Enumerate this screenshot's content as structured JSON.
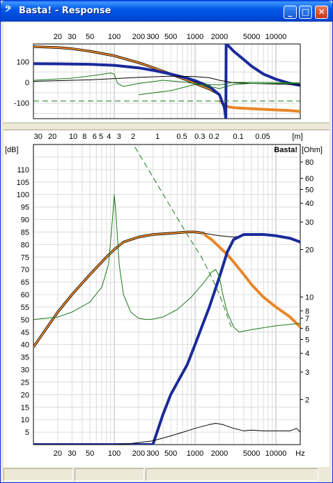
{
  "window": {
    "title": "Basta! - Response",
    "app_icon": "bass-clef-icon",
    "controls": {
      "minimize": "_",
      "maximize": "□",
      "close": "✕"
    }
  },
  "chart_data": [
    {
      "type": "line",
      "name": "upper-plot",
      "x_scale": "log",
      "xlim": [
        10,
        20000
      ],
      "ylim": [
        -175,
        185
      ],
      "y_ticks": [
        "100",
        "0",
        "-100"
      ],
      "x_ticks": [
        "20",
        "30",
        "50",
        "100",
        "200",
        "300",
        "500",
        "1000",
        "2000",
        "5000",
        "10000"
      ],
      "grid": true,
      "series": [
        {
          "color": "#000000",
          "width": 3.5,
          "x": [
            10,
            20,
            30,
            50,
            100,
            200,
            300,
            500,
            800,
            1000,
            1500,
            2000
          ],
          "y": [
            172,
            168,
            162,
            150,
            128,
            95,
            72,
            40,
            10,
            -5,
            -32,
            -58
          ]
        },
        {
          "color": "#e8862a",
          "width": 2,
          "x": [
            10,
            20,
            30,
            50,
            100,
            200,
            300,
            500,
            800,
            1000,
            1500,
            2000
          ],
          "y": [
            172,
            168,
            162,
            150,
            128,
            95,
            72,
            40,
            10,
            -5,
            -32,
            -58
          ]
        },
        {
          "color": "#e8862a",
          "width": 4,
          "x": [
            2000,
            2300,
            2600,
            3000,
            4000,
            5000,
            7000,
            10000,
            15000,
            20000
          ],
          "y": [
            -85,
            -110,
            -118,
            -122,
            -125,
            -127,
            -130,
            -133,
            -136,
            -140
          ]
        },
        {
          "color": "#1a2a9a",
          "width": 4,
          "x": [
            10,
            20,
            50,
            100,
            200,
            300,
            500,
            800,
            1000,
            1500,
            2000,
            2300,
            2400
          ],
          "y": [
            90,
            89,
            87,
            82,
            70,
            58,
            40,
            20,
            8,
            -20,
            -60,
            -120,
            -175
          ]
        },
        {
          "color": "#1a2a9a",
          "width": 4,
          "x": [
            2400,
            2420,
            2600,
            3000,
            4000,
            5000,
            7000,
            10000,
            15000,
            20000
          ],
          "y": [
            -175,
            185,
            175,
            150,
            110,
            78,
            40,
            15,
            -5,
            -15
          ]
        },
        {
          "color": "#000000",
          "width": 1,
          "x": [
            10,
            50,
            100,
            200,
            500,
            1000,
            1500,
            2000,
            3000,
            5000,
            10000,
            20000
          ],
          "y": [
            5,
            12,
            18,
            24,
            30,
            28,
            22,
            10,
            -2,
            -5,
            -8,
            -12
          ]
        },
        {
          "color": "#1a7a1a",
          "width": 1,
          "x": [
            10,
            30,
            60,
            90,
            100,
            110,
            130,
            200,
            400,
            800,
            1500,
            2000,
            3000,
            5000,
            10000,
            20000
          ],
          "y": [
            10,
            20,
            35,
            45,
            40,
            -5,
            -20,
            -5,
            10,
            0,
            -20,
            -30,
            -10,
            -5,
            -5,
            -5
          ]
        },
        {
          "color": "#1a7a1a",
          "width": 1,
          "x": [
            200,
            500,
            1000,
            2000,
            2500,
            3000,
            5000,
            10000,
            20000
          ],
          "y": [
            -60,
            -40,
            -10,
            -12,
            -5,
            0,
            0,
            0,
            -3
          ]
        },
        {
          "color": "#1a7a1a",
          "width": 1,
          "dash": true,
          "x": [
            10,
            20000
          ],
          "y": [
            -90,
            -90
          ]
        }
      ]
    },
    {
      "type": "line",
      "name": "lower-plot",
      "x_scale": "log",
      "xlim": [
        10,
        20000
      ],
      "ylim": [
        0,
        120
      ],
      "ylabel": "[dB]",
      "y2label": "[Ohm]",
      "y_ticks": [
        5,
        10,
        15,
        20,
        25,
        30,
        35,
        40,
        45,
        50,
        55,
        60,
        65,
        70,
        75,
        80,
        85,
        90,
        95,
        100,
        105,
        110
      ],
      "y2_ticks": [
        {
          "label": "2",
          "db": 18
        },
        {
          "label": "3",
          "db": 29
        },
        {
          "label": "4",
          "db": 36.5
        },
        {
          "label": "5",
          "db": 42
        },
        {
          "label": "6",
          "db": 46.5
        },
        {
          "label": "7",
          "db": 50.5
        },
        {
          "label": "8",
          "db": 53.5
        },
        {
          "label": "10",
          "db": 59
        },
        {
          "label": "20",
          "db": 78
        },
        {
          "label": "30",
          "db": 89
        },
        {
          "label": "40",
          "db": 96.5
        },
        {
          "label": "50",
          "db": 102
        },
        {
          "label": "60",
          "db": 106.5
        },
        {
          "label": "80",
          "db": 113
        }
      ],
      "x_ticks": [
        "20",
        "30",
        "50",
        "100",
        "200",
        "300",
        "500",
        "1000",
        "2000",
        "5000",
        "10000",
        "Hz"
      ],
      "top_ticks": [
        "30",
        "20",
        "10",
        "8",
        "6",
        "5",
        "4",
        "3",
        "2",
        "1",
        "0.5",
        "0.3",
        "0.2",
        "0.1",
        "0.05",
        "[m]"
      ],
      "watermark": "Basta!",
      "series": [
        {
          "color": "#000000",
          "width": 3.5,
          "x": [
            10,
            20,
            30,
            50,
            80,
            100,
            130,
            200,
            300,
            500,
            800,
            1000,
            1300
          ],
          "y": [
            39,
            53,
            60,
            68,
            75,
            78,
            81,
            83,
            84,
            84.5,
            85,
            85,
            84.5
          ]
        },
        {
          "color": "#e8862a",
          "width": 2,
          "x": [
            10,
            20,
            30,
            50,
            80,
            100,
            130,
            200,
            300,
            500,
            800,
            1000,
            1300
          ],
          "y": [
            39,
            53,
            60,
            68,
            75,
            78,
            81,
            83,
            84,
            84.5,
            85,
            85,
            84.5
          ]
        },
        {
          "color": "#e8862a",
          "width": 4,
          "x": [
            1300,
            1600,
            2000,
            2500,
            3000,
            4000,
            5000,
            7000,
            10000,
            15000,
            20000
          ],
          "y": [
            84,
            82,
            79,
            76,
            73,
            68,
            64,
            59,
            55,
            51,
            47
          ]
        },
        {
          "color": "#000000",
          "width": 1,
          "x": [
            1300,
            2000,
            3000,
            5000,
            8000,
            12000,
            20000
          ],
          "y": [
            84.5,
            83.5,
            83,
            84,
            84,
            83,
            81
          ]
        },
        {
          "color": "#1a2a9a",
          "width": 4,
          "x": [
            10,
            100,
            250,
            300,
            400,
            500,
            800,
            1000,
            1500,
            2000,
            2500,
            3000,
            4000,
            5000,
            7000,
            10000,
            15000,
            20000
          ],
          "y": [
            0,
            0,
            0,
            0,
            12,
            20,
            32,
            40,
            55,
            67,
            77,
            82,
            84,
            84,
            84,
            83.5,
            82.5,
            81
          ]
        },
        {
          "color": "#000000",
          "width": 1,
          "x": [
            10,
            100,
            150,
            200,
            300,
            500,
            800,
            1000,
            1500,
            1800,
            2200,
            3000,
            4000,
            5000,
            7000,
            10000,
            15000,
            18000,
            20000
          ],
          "y": [
            0,
            0,
            0.3,
            0.8,
            1.5,
            3.5,
            5.5,
            6.5,
            8,
            8.5,
            8,
            6.5,
            5.5,
            5.8,
            5.5,
            5.5,
            5.5,
            6.5,
            5
          ]
        },
        {
          "color": "#1a7a1a",
          "width": 1,
          "x": [
            10,
            20,
            30,
            50,
            70,
            85,
            95,
            100,
            105,
            115,
            130,
            160,
            200,
            250,
            300,
            400,
            600,
            900,
            1300,
            1600,
            1800,
            2000,
            2200,
            2500,
            3000,
            3500,
            5000,
            10000,
            20000
          ],
          "y": [
            50,
            51,
            53,
            57,
            63,
            72,
            90,
            100,
            92,
            72,
            60,
            53,
            50.5,
            50,
            50.2,
            51,
            54,
            59,
            65,
            69,
            70,
            67,
            60,
            53,
            47,
            45,
            46,
            47.5,
            48.5
          ]
        },
        {
          "color": "#1a7a1a",
          "width": 1,
          "dash": true,
          "x": [
            180,
            300,
            500,
            800,
            1200,
            1600,
            2000,
            2400,
            2800
          ],
          "y": [
            119,
            107,
            95,
            84,
            75,
            67,
            60,
            53,
            47
          ]
        }
      ]
    }
  ]
}
